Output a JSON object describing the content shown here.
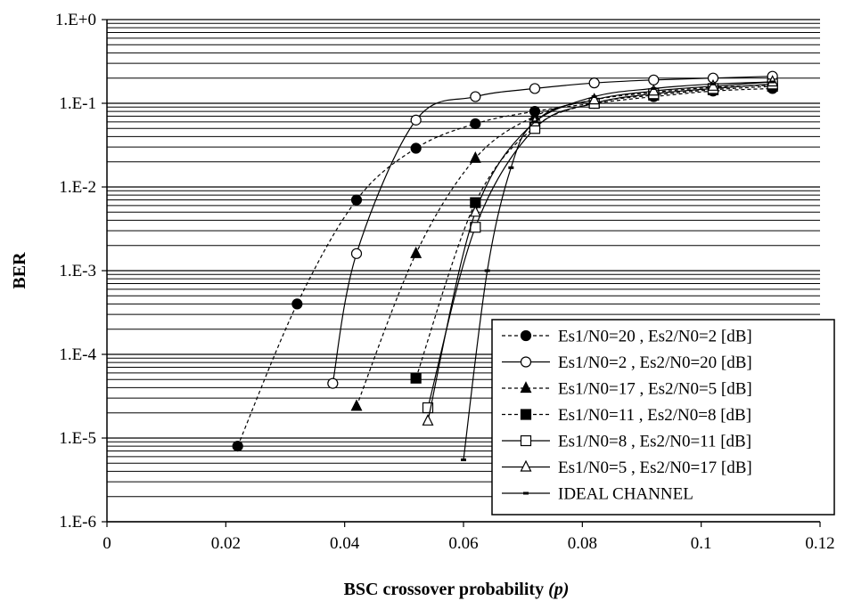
{
  "chart_data": {
    "type": "line",
    "title": "",
    "xlabel": "BSC crossover probability",
    "xlabel_var": "(p)",
    "ylabel": "BER",
    "xlim": [
      0,
      0.12
    ],
    "ylim": [
      1e-06,
      1
    ],
    "y_scale": "log",
    "grid": "horizontal",
    "legend_position": "bottom-right",
    "x_ticks": [
      "0",
      "0.02",
      "0.04",
      "0.06",
      "0.08",
      "0.1",
      "0.12"
    ],
    "y_ticks": [
      "1.E+0",
      "1.E-1",
      "1.E-2",
      "1.E-3",
      "1.E-4",
      "1.E-5",
      "1.E-6"
    ],
    "series": [
      {
        "name": "Es1/N0=20 , Es2/N0=2 [dB]",
        "marker": "filled-circle",
        "line": "dashed",
        "points": [
          [
            0.022,
            8e-06
          ],
          [
            0.032,
            0.0004
          ],
          [
            0.042,
            0.007
          ],
          [
            0.052,
            0.029
          ],
          [
            0.062,
            0.057
          ],
          [
            0.072,
            0.08
          ],
          [
            0.082,
            0.1
          ],
          [
            0.092,
            0.12
          ],
          [
            0.102,
            0.14
          ],
          [
            0.112,
            0.15
          ]
        ]
      },
      {
        "name": "Es1/N0=2 , Es2/N0=20 [dB]",
        "marker": "open-circle",
        "line": "solid",
        "points": [
          [
            0.038,
            4.5e-05
          ],
          [
            0.042,
            0.0016
          ],
          [
            0.052,
            0.063
          ],
          [
            0.062,
            0.12
          ],
          [
            0.072,
            0.15
          ],
          [
            0.082,
            0.175
          ],
          [
            0.092,
            0.19
          ],
          [
            0.102,
            0.2
          ],
          [
            0.112,
            0.21
          ]
        ]
      },
      {
        "name": "Es1/N0=17 , Es2/N0=5 [dB]",
        "marker": "filled-triangle",
        "line": "dashed",
        "points": [
          [
            0.042,
            2.4e-05
          ],
          [
            0.052,
            0.0016
          ],
          [
            0.062,
            0.022
          ],
          [
            0.072,
            0.07
          ],
          [
            0.082,
            0.11
          ],
          [
            0.092,
            0.135
          ],
          [
            0.102,
            0.155
          ],
          [
            0.112,
            0.165
          ]
        ]
      },
      {
        "name": "Es1/N0=11 , Es2/N0=8 [dB]",
        "marker": "filled-square",
        "line": "dashed",
        "points": [
          [
            0.052,
            5.2e-05
          ],
          [
            0.062,
            0.0065
          ],
          [
            0.072,
            0.052
          ],
          [
            0.082,
            0.1
          ],
          [
            0.092,
            0.125
          ],
          [
            0.102,
            0.145
          ],
          [
            0.112,
            0.16
          ]
        ]
      },
      {
        "name": "Es1/N0=8 , Es2/N0=11 [dB]",
        "marker": "open-square",
        "line": "solid",
        "points": [
          [
            0.054,
            2.3e-05
          ],
          [
            0.062,
            0.0033
          ],
          [
            0.072,
            0.05
          ],
          [
            0.082,
            0.1
          ],
          [
            0.092,
            0.13
          ],
          [
            0.102,
            0.15
          ],
          [
            0.112,
            0.17
          ]
        ]
      },
      {
        "name": "Es1/N0=5 , Es2/N0=17 [dB]",
        "marker": "open-triangle",
        "line": "solid",
        "points": [
          [
            0.054,
            1.6e-05
          ],
          [
            0.062,
            0.005
          ],
          [
            0.072,
            0.06
          ],
          [
            0.082,
            0.11
          ],
          [
            0.092,
            0.14
          ],
          [
            0.102,
            0.16
          ],
          [
            0.112,
            0.18
          ]
        ]
      },
      {
        "name": "IDEAL CHANNEL",
        "marker": "small-dash",
        "line": "solid",
        "points": [
          [
            0.06,
            5.5e-06
          ],
          [
            0.064,
            0.001
          ],
          [
            0.068,
            0.017
          ],
          [
            0.072,
            0.06
          ],
          [
            0.082,
            0.12
          ],
          [
            0.092,
            0.15
          ],
          [
            0.102,
            0.17
          ],
          [
            0.112,
            0.18
          ]
        ]
      }
    ]
  }
}
